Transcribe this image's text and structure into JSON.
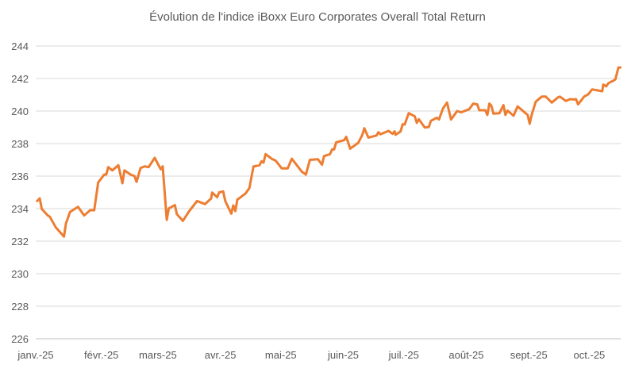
{
  "chart_data": {
    "type": "line",
    "title": "Évolution de l'indice iBoxx Euro Corporates Overall Total Return",
    "xlabel": "",
    "ylabel": "",
    "ylim": [
      226,
      244
    ],
    "yticks": [
      226,
      228,
      230,
      232,
      234,
      236,
      238,
      240,
      242,
      244
    ],
    "xlim_days_since_jan1": [
      0,
      290
    ],
    "xticks": [
      {
        "label": "janv.-25",
        "day": 0
      },
      {
        "label": "févr.-25",
        "day": 31
      },
      {
        "label": "mars-25",
        "day": 59
      },
      {
        "label": "avr.-25",
        "day": 90
      },
      {
        "label": "mai-25",
        "day": 120
      },
      {
        "label": "juin-25",
        "day": 151
      },
      {
        "label": "juil.-25",
        "day": 181
      },
      {
        "label": "août-25",
        "day": 212
      },
      {
        "label": "sept.-25",
        "day": 243
      },
      {
        "label": "oct.-25",
        "day": 273
      }
    ],
    "grid": true,
    "legend": "none",
    "series": [
      {
        "name": "iBoxx Euro Corporates Overall Total Return",
        "color": "#ED7D31",
        "x": [
          0.7,
          2,
          3,
          6,
          7,
          10,
          14,
          15,
          17,
          21,
          24,
          27,
          29,
          31,
          34,
          35,
          36,
          38,
          41,
          43,
          44,
          47,
          49,
          50,
          52,
          54,
          56,
          59,
          62,
          63,
          65,
          66,
          69,
          70,
          73,
          76,
          80,
          84,
          87,
          87.5,
          90,
          91,
          93,
          94,
          97,
          98,
          99,
          100,
          104,
          106,
          108,
          111,
          112,
          113,
          114,
          117,
          119,
          122,
          125,
          127,
          132,
          134,
          136,
          140,
          142,
          143,
          146,
          147,
          148,
          149,
          153,
          154,
          156,
          160,
          162,
          163,
          165,
          169,
          170,
          171,
          175,
          177,
          178,
          178.5,
          181,
          182,
          183,
          185,
          188,
          189,
          190,
          193,
          195,
          196,
          199,
          200,
          202,
          204,
          206,
          209,
          211,
          215,
          217,
          219,
          220,
          223,
          224,
          225,
          226,
          227,
          230,
          232,
          233,
          234,
          237,
          239,
          242,
          244,
          245,
          246,
          248,
          251,
          253,
          256,
          259,
          260,
          263,
          265,
          267,
          268,
          269,
          272,
          274,
          276,
          281,
          281.5,
          283,
          284,
          286.5,
          287.5,
          289,
          290
        ],
        "values": [
          234.47,
          234.63,
          233.98,
          233.58,
          233.5,
          232.84,
          232.28,
          233.09,
          233.79,
          234.11,
          233.58,
          233.9,
          233.9,
          235.61,
          236.1,
          236.1,
          236.55,
          236.35,
          236.67,
          235.56,
          236.35,
          236.1,
          236.0,
          235.65,
          236.5,
          236.6,
          236.55,
          237.12,
          236.42,
          236.6,
          233.3,
          234.01,
          234.22,
          233.66,
          233.25,
          233.82,
          234.47,
          234.28,
          234.63,
          234.99,
          234.7,
          235.0,
          235.06,
          234.47,
          233.69,
          234.2,
          233.85,
          234.55,
          234.92,
          235.27,
          236.59,
          236.67,
          236.91,
          236.83,
          237.35,
          237.07,
          236.95,
          236.48,
          236.48,
          237.07,
          236.27,
          236.1,
          237.0,
          237.04,
          236.7,
          237.23,
          237.35,
          237.64,
          237.64,
          238.08,
          238.21,
          238.41,
          237.69,
          238.05,
          238.54,
          238.94,
          238.37,
          238.5,
          238.7,
          238.57,
          238.78,
          238.6,
          238.75,
          238.54,
          238.75,
          239.19,
          239.17,
          239.87,
          239.68,
          239.28,
          239.5,
          238.99,
          239.02,
          239.4,
          239.59,
          239.48,
          240.16,
          240.52,
          239.48,
          240.0,
          239.92,
          240.11,
          240.46,
          240.41,
          240.05,
          240.05,
          239.76,
          240.46,
          240.33,
          239.84,
          239.87,
          240.36,
          239.76,
          240.03,
          239.71,
          240.29,
          239.97,
          239.76,
          239.22,
          239.76,
          240.57,
          240.89,
          240.89,
          240.52,
          240.84,
          240.89,
          240.62,
          240.73,
          240.71,
          240.73,
          240.41,
          240.89,
          241.03,
          241.33,
          241.22,
          241.63,
          241.52,
          241.71,
          241.87,
          241.95,
          242.68,
          242.68
        ]
      }
    ]
  }
}
